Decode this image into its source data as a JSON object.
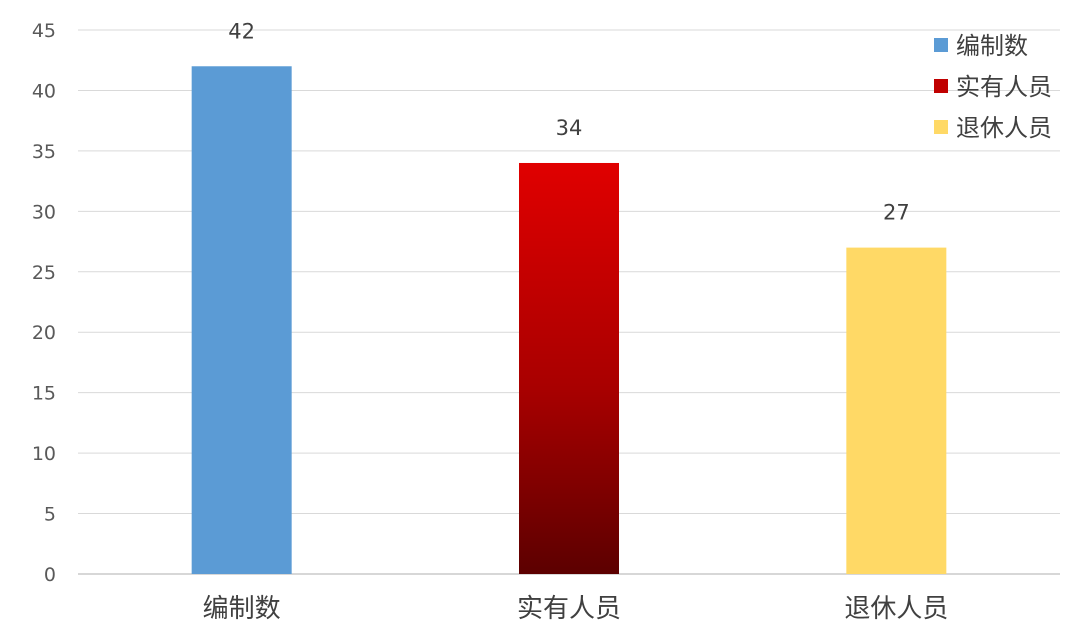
{
  "chart_data": {
    "type": "bar",
    "categories": [
      "编制数",
      "实有人员",
      "退休人员"
    ],
    "values": [
      42,
      34,
      27
    ],
    "series": [
      {
        "name": "编制数",
        "values": [
          42,
          null,
          null
        ],
        "color": "#5b9bd5"
      },
      {
        "name": "实有人员",
        "values": [
          null,
          34,
          null
        ],
        "color": "#e00000",
        "gradient_to": "#5c0000"
      },
      {
        "name": "退休人员",
        "values": [
          null,
          null,
          27
        ],
        "color": "#ffd966"
      }
    ],
    "data_labels": [
      "42",
      "34",
      "27"
    ],
    "ylim": [
      0,
      45
    ],
    "yticks": [
      0,
      5,
      10,
      15,
      20,
      25,
      30,
      35,
      40,
      45
    ],
    "grid": true,
    "legend": {
      "position": "top-right",
      "entries": [
        {
          "label": "编制数",
          "color": "#5b9bd5"
        },
        {
          "label": "实有人员",
          "color": "#c00000"
        },
        {
          "label": "退休人员",
          "color": "#ffd966"
        }
      ]
    },
    "title": "",
    "xlabel": "",
    "ylabel": ""
  }
}
